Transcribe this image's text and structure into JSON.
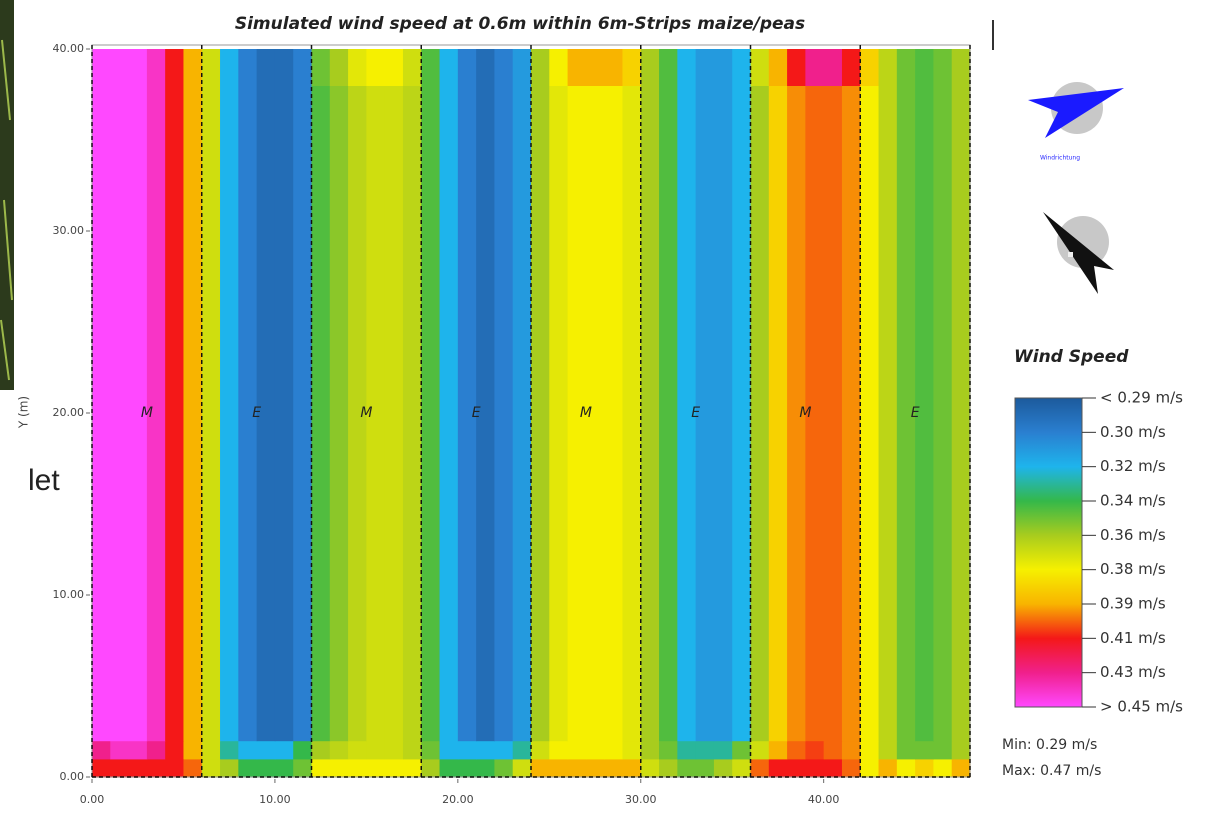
{
  "chart_data": {
    "type": "heatmap",
    "title": "Simulated wind speed at 0.6m within 6m-Strips maize/peas",
    "ylabel": "Y (m)",
    "side_text": "let",
    "xbins": [
      0,
      1,
      2,
      3,
      4,
      5,
      6,
      7,
      8,
      9,
      10,
      11,
      12,
      13,
      14,
      15,
      16,
      17,
      18,
      19,
      20,
      21,
      22,
      23,
      24,
      25,
      26,
      27,
      28,
      29,
      30,
      31,
      32,
      33,
      34,
      35,
      36,
      37,
      38,
      39,
      40,
      41,
      42,
      43,
      44,
      45,
      46,
      47,
      48
    ],
    "ybins": [
      0,
      1,
      2,
      38,
      40
    ],
    "z": [
      [
        0.41,
        0.41,
        0.41,
        0.41,
        0.41,
        0.4,
        0.37,
        0.36,
        0.34,
        0.34,
        0.34,
        0.35,
        0.38,
        0.38,
        0.38,
        0.38,
        0.38,
        0.38,
        0.36,
        0.34,
        0.34,
        0.34,
        0.35,
        0.37,
        0.39,
        0.39,
        0.39,
        0.39,
        0.39,
        0.39,
        0.37,
        0.36,
        0.35,
        0.35,
        0.36,
        0.37,
        0.4,
        0.41,
        0.41,
        0.41,
        0.41,
        0.4,
        0.38,
        0.39,
        0.38,
        0.385,
        0.38,
        0.39
      ],
      [
        0.43,
        0.44,
        0.44,
        0.43,
        0.41,
        0.39,
        0.37,
        0.33,
        0.32,
        0.32,
        0.32,
        0.34,
        0.36,
        0.365,
        0.37,
        0.37,
        0.37,
        0.365,
        0.35,
        0.32,
        0.32,
        0.32,
        0.32,
        0.33,
        0.37,
        0.38,
        0.38,
        0.38,
        0.38,
        0.375,
        0.36,
        0.35,
        0.33,
        0.33,
        0.33,
        0.35,
        0.37,
        0.39,
        0.4,
        0.405,
        0.4,
        0.395,
        0.38,
        0.365,
        0.35,
        0.35,
        0.35,
        0.36
      ],
      [
        0.45,
        0.45,
        0.45,
        0.44,
        0.41,
        0.39,
        0.37,
        0.32,
        0.3,
        0.295,
        0.295,
        0.3,
        0.345,
        0.355,
        0.365,
        0.37,
        0.37,
        0.365,
        0.345,
        0.32,
        0.3,
        0.295,
        0.3,
        0.31,
        0.36,
        0.375,
        0.38,
        0.38,
        0.38,
        0.375,
        0.36,
        0.345,
        0.32,
        0.31,
        0.31,
        0.32,
        0.36,
        0.385,
        0.395,
        0.4,
        0.4,
        0.395,
        0.38,
        0.365,
        0.35,
        0.345,
        0.35,
        0.36
      ],
      [
        0.45,
        0.45,
        0.45,
        0.44,
        0.41,
        0.39,
        0.37,
        0.32,
        0.3,
        0.295,
        0.295,
        0.3,
        0.35,
        0.36,
        0.375,
        0.38,
        0.38,
        0.37,
        0.345,
        0.32,
        0.3,
        0.295,
        0.3,
        0.31,
        0.36,
        0.38,
        0.39,
        0.39,
        0.39,
        0.385,
        0.36,
        0.345,
        0.32,
        0.31,
        0.31,
        0.32,
        0.37,
        0.39,
        0.41,
        0.43,
        0.43,
        0.41,
        0.385,
        0.365,
        0.35,
        0.345,
        0.35,
        0.36
      ]
    ],
    "xlim": [
      0,
      48
    ],
    "ylim": [
      0,
      40
    ],
    "xticks": [
      {
        "value": 0,
        "label": "0.00"
      },
      {
        "value": 10,
        "label": "10.00"
      },
      {
        "value": 20,
        "label": "20.00"
      },
      {
        "value": 30,
        "label": "30.00"
      },
      {
        "value": 40,
        "label": "40.00"
      }
    ],
    "yticks": [
      {
        "value": 0,
        "label": "0.00"
      },
      {
        "value": 10,
        "label": "10.00"
      },
      {
        "value": 20,
        "label": "20.00"
      },
      {
        "value": 30,
        "label": "30.00"
      },
      {
        "value": 40,
        "label": "40.00"
      }
    ],
    "strips": {
      "labels": [
        "M",
        "E",
        "M",
        "E",
        "M",
        "E",
        "M",
        "E"
      ],
      "edges": [
        0,
        6,
        12,
        18,
        24,
        30,
        36,
        42,
        48
      ],
      "label_y": 20
    },
    "wind_label": "Windrichtung",
    "legend": {
      "title": "Wind Speed",
      "ticks": [
        {
          "value": 0.29,
          "label": "< 0.29 m/s"
        },
        {
          "value": 0.3,
          "label": "0.30  m/s"
        },
        {
          "value": 0.32,
          "label": "0.32  m/s"
        },
        {
          "value": 0.34,
          "label": "0.34  m/s"
        },
        {
          "value": 0.36,
          "label": "0.36  m/s"
        },
        {
          "value": 0.38,
          "label": "0.38  m/s"
        },
        {
          "value": 0.39,
          "label": "0.39  m/s"
        },
        {
          "value": 0.41,
          "label": "0.41  m/s"
        },
        {
          "value": 0.43,
          "label": "0.43  m/s"
        },
        {
          "value": 0.45,
          "label": "> 0.45 m/s"
        }
      ],
      "colors": [
        "#1c5a9c",
        "#2a7fd0",
        "#1eb4ec",
        "#34b84a",
        "#a8cc1e",
        "#f6f000",
        "#f8b400",
        "#f41818",
        "#f0208c",
        "#ff48ff"
      ]
    },
    "stats": [
      "Min: 0.29 m/s",
      "Max: 0.47 m/s"
    ]
  }
}
